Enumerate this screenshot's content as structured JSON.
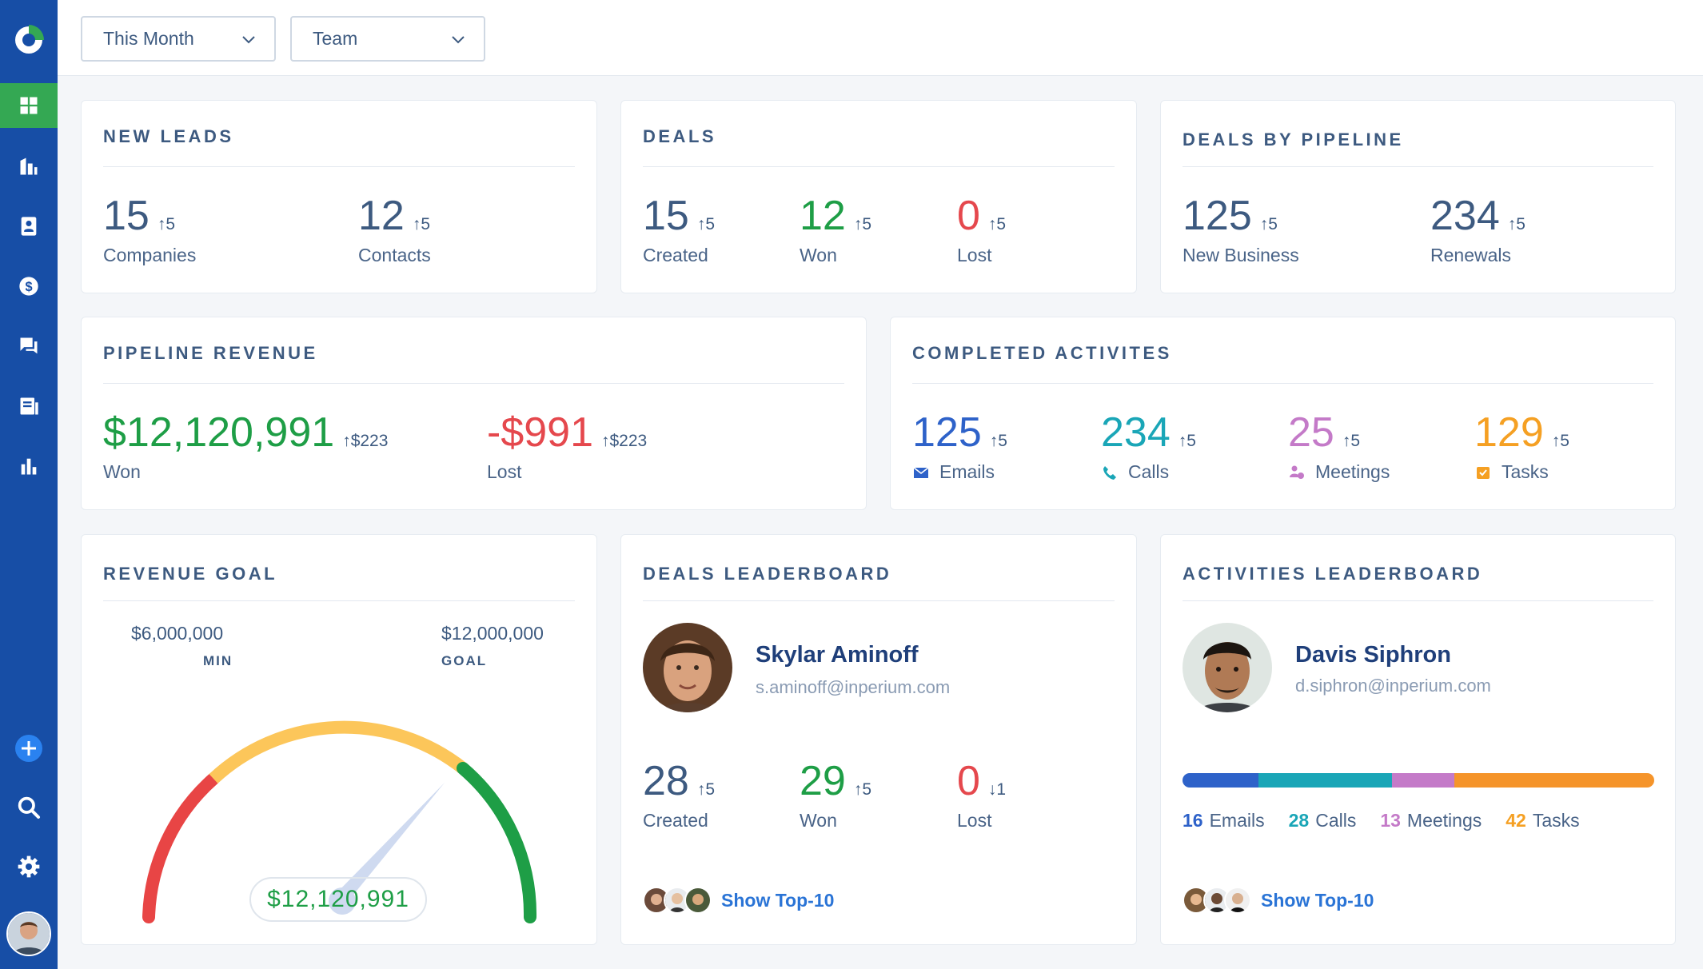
{
  "colors": {
    "sidebar": "#174ea6",
    "active_nav": "#34a853",
    "green": "#1e9e46",
    "red": "#e5484d",
    "teal": "#1aa6b7",
    "purple": "#c47ac8",
    "orange": "#f5a023",
    "blue": "#2e62c9"
  },
  "sidebar": {
    "items": [
      {
        "icon": "dashboard-icon",
        "active": true
      },
      {
        "icon": "companies-icon"
      },
      {
        "icon": "contacts-icon"
      },
      {
        "icon": "deals-dollar-icon"
      },
      {
        "icon": "chat-icon"
      },
      {
        "icon": "documents-icon"
      },
      {
        "icon": "reports-chart-icon"
      }
    ],
    "bottom": [
      "add-icon",
      "search-icon",
      "settings-gear-icon",
      "user-avatar"
    ]
  },
  "filters": {
    "period": "This Month",
    "scope": "Team"
  },
  "new_leads": {
    "title": "NEW LEADS",
    "companies": {
      "value": "15",
      "delta": "↑5",
      "label": "Companies"
    },
    "contacts": {
      "value": "12",
      "delta": "↑5",
      "label": "Contacts"
    }
  },
  "deals": {
    "title": "DEALS",
    "created": {
      "value": "15",
      "delta": "↑5",
      "label": "Created"
    },
    "won": {
      "value": "12",
      "delta": "↑5",
      "label": "Won"
    },
    "lost": {
      "value": "0",
      "delta": "↑5",
      "label": "Lost"
    }
  },
  "deals_by_pipeline": {
    "title": "DEALS BY PIPELINE",
    "new_business": {
      "value": "125",
      "delta": "↑5",
      "label": "New Business"
    },
    "renewals": {
      "value": "234",
      "delta": "↑5",
      "label": "Renewals"
    }
  },
  "pipeline_revenue": {
    "title": "PIPELINE REVENUE",
    "won": {
      "value": "$12,120,991",
      "delta": "↑$223",
      "label": "Won"
    },
    "lost": {
      "value": "-$991",
      "delta": "↑$223",
      "label": "Lost"
    }
  },
  "completed_activities": {
    "title": "COMPLETED ACTIVITES",
    "emails": {
      "value": "125",
      "delta": "↑5",
      "label": "Emails"
    },
    "calls": {
      "value": "234",
      "delta": "↑5",
      "label": "Calls"
    },
    "meetings": {
      "value": "25",
      "delta": "↑5",
      "label": "Meetings"
    },
    "tasks": {
      "value": "129",
      "delta": "↑5",
      "label": "Tasks"
    }
  },
  "revenue_goal": {
    "title": "REVENUE GOAL",
    "min_value": "$6,000,000",
    "min_label": "MIN",
    "goal_value": "$12,000,000",
    "goal_label": "GOAL",
    "current": "$12,120,991"
  },
  "deals_leaderboard": {
    "title": "DEALS LEADERBOARD",
    "name": "Skylar Aminoff",
    "email": "s.aminoff@inperium.com",
    "created": {
      "value": "28",
      "delta": "↑5",
      "label": "Created"
    },
    "won": {
      "value": "29",
      "delta": "↑5",
      "label": "Won"
    },
    "lost": {
      "value": "0",
      "delta": "↓1",
      "label": "Lost"
    },
    "show_top": "Show Top-10"
  },
  "activities_leaderboard": {
    "title": "ACTIVITIES LEADERBOARD",
    "name": "Davis Siphron",
    "email": "d.siphron@inperium.com",
    "emails": {
      "count": "16",
      "label": "Emails"
    },
    "calls": {
      "count": "28",
      "label": "Calls"
    },
    "meetings": {
      "count": "13",
      "label": "Meetings"
    },
    "tasks": {
      "count": "42",
      "label": "Tasks"
    },
    "show_top": "Show Top-10"
  }
}
